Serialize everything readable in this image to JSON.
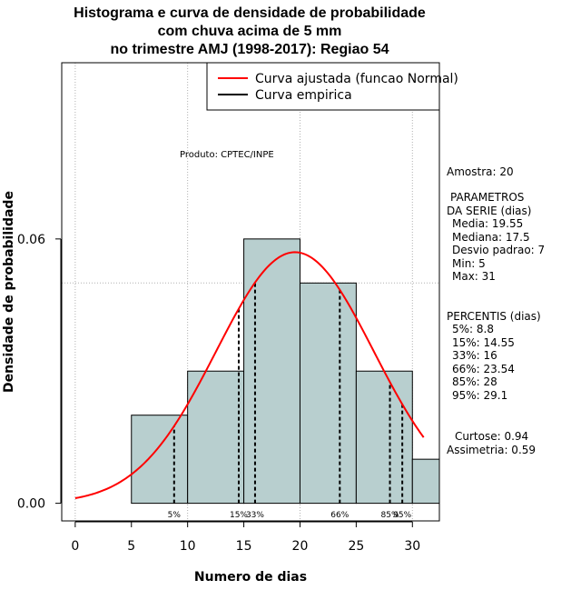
{
  "chart_data": {
    "type": "histogram",
    "title_lines": [
      "Histograma e curva de densidade de probabilidade",
      "com chuva acima de 5 mm",
      "no trimestre AMJ (1998-2017): Regiao 54"
    ],
    "xlabel": "Numero de dias",
    "ylabel": "Densidade de probabilidade",
    "xlim": [
      -1.2,
      32.4
    ],
    "ylim": [
      -0.004,
      0.1
    ],
    "x_ticks": [
      0,
      5,
      10,
      15,
      20,
      25,
      30
    ],
    "y_ticks": [
      0.0,
      0.06
    ],
    "y_tick_labels": [
      "0.00",
      "0.06"
    ],
    "grid_x": [
      0,
      10,
      20,
      30
    ],
    "grid_y": [
      0.05,
      0.1
    ],
    "bins": [
      {
        "from": 5,
        "to": 10,
        "density": 0.02
      },
      {
        "from": 10,
        "to": 15,
        "density": 0.03
      },
      {
        "from": 15,
        "to": 20,
        "density": 0.06
      },
      {
        "from": 20,
        "to": 25,
        "density": 0.05
      },
      {
        "from": 25,
        "to": 30,
        "density": 0.03
      },
      {
        "from": 30,
        "to": 35,
        "density": 0.01
      }
    ],
    "normal_fit": {
      "mean": 19.55,
      "sd": 7,
      "from": 0,
      "to": 31
    },
    "percentile_lines": [
      {
        "label": "5%",
        "value": 8.8
      },
      {
        "label": "15%",
        "value": 14.55
      },
      {
        "label": "33%",
        "value": 16
      },
      {
        "label": "66%",
        "value": 23.54
      },
      {
        "label": "85%",
        "value": 28
      },
      {
        "label": "95%",
        "value": 29.1
      }
    ],
    "legend": [
      {
        "label": "Curva ajustada (funcao Normal)",
        "color": "#ff0000"
      },
      {
        "label": "Curva empirica",
        "color": "#000000"
      }
    ],
    "legend_position": "top-right",
    "annotation": "Produto: CPTEC/INPE",
    "colors": {
      "bar_fill": "#b8cfcf",
      "curve": "#ff0000",
      "grid": "#b0b0b0"
    }
  },
  "stats_panel": {
    "amostra": "Amostra: 20",
    "parametros_heading_1": "PARAMETROS",
    "parametros_heading_2": "DA SERIE (dias)",
    "media": "Media: 19.55",
    "mediana": "Mediana: 17.5",
    "desvio": "Desvio padrao: 7",
    "min": "Min: 5",
    "max": "Max: 31",
    "percentis_heading": "PERCENTIS (dias)",
    "p5": "5%: 8.8",
    "p15": "15%: 14.55",
    "p33": "33%: 16",
    "p66": "66%: 23.54",
    "p85": "85%: 28",
    "p95": "95%: 29.1",
    "curtose": "Curtose: 0.94",
    "assimetria": "Assimetria: 0.59"
  }
}
